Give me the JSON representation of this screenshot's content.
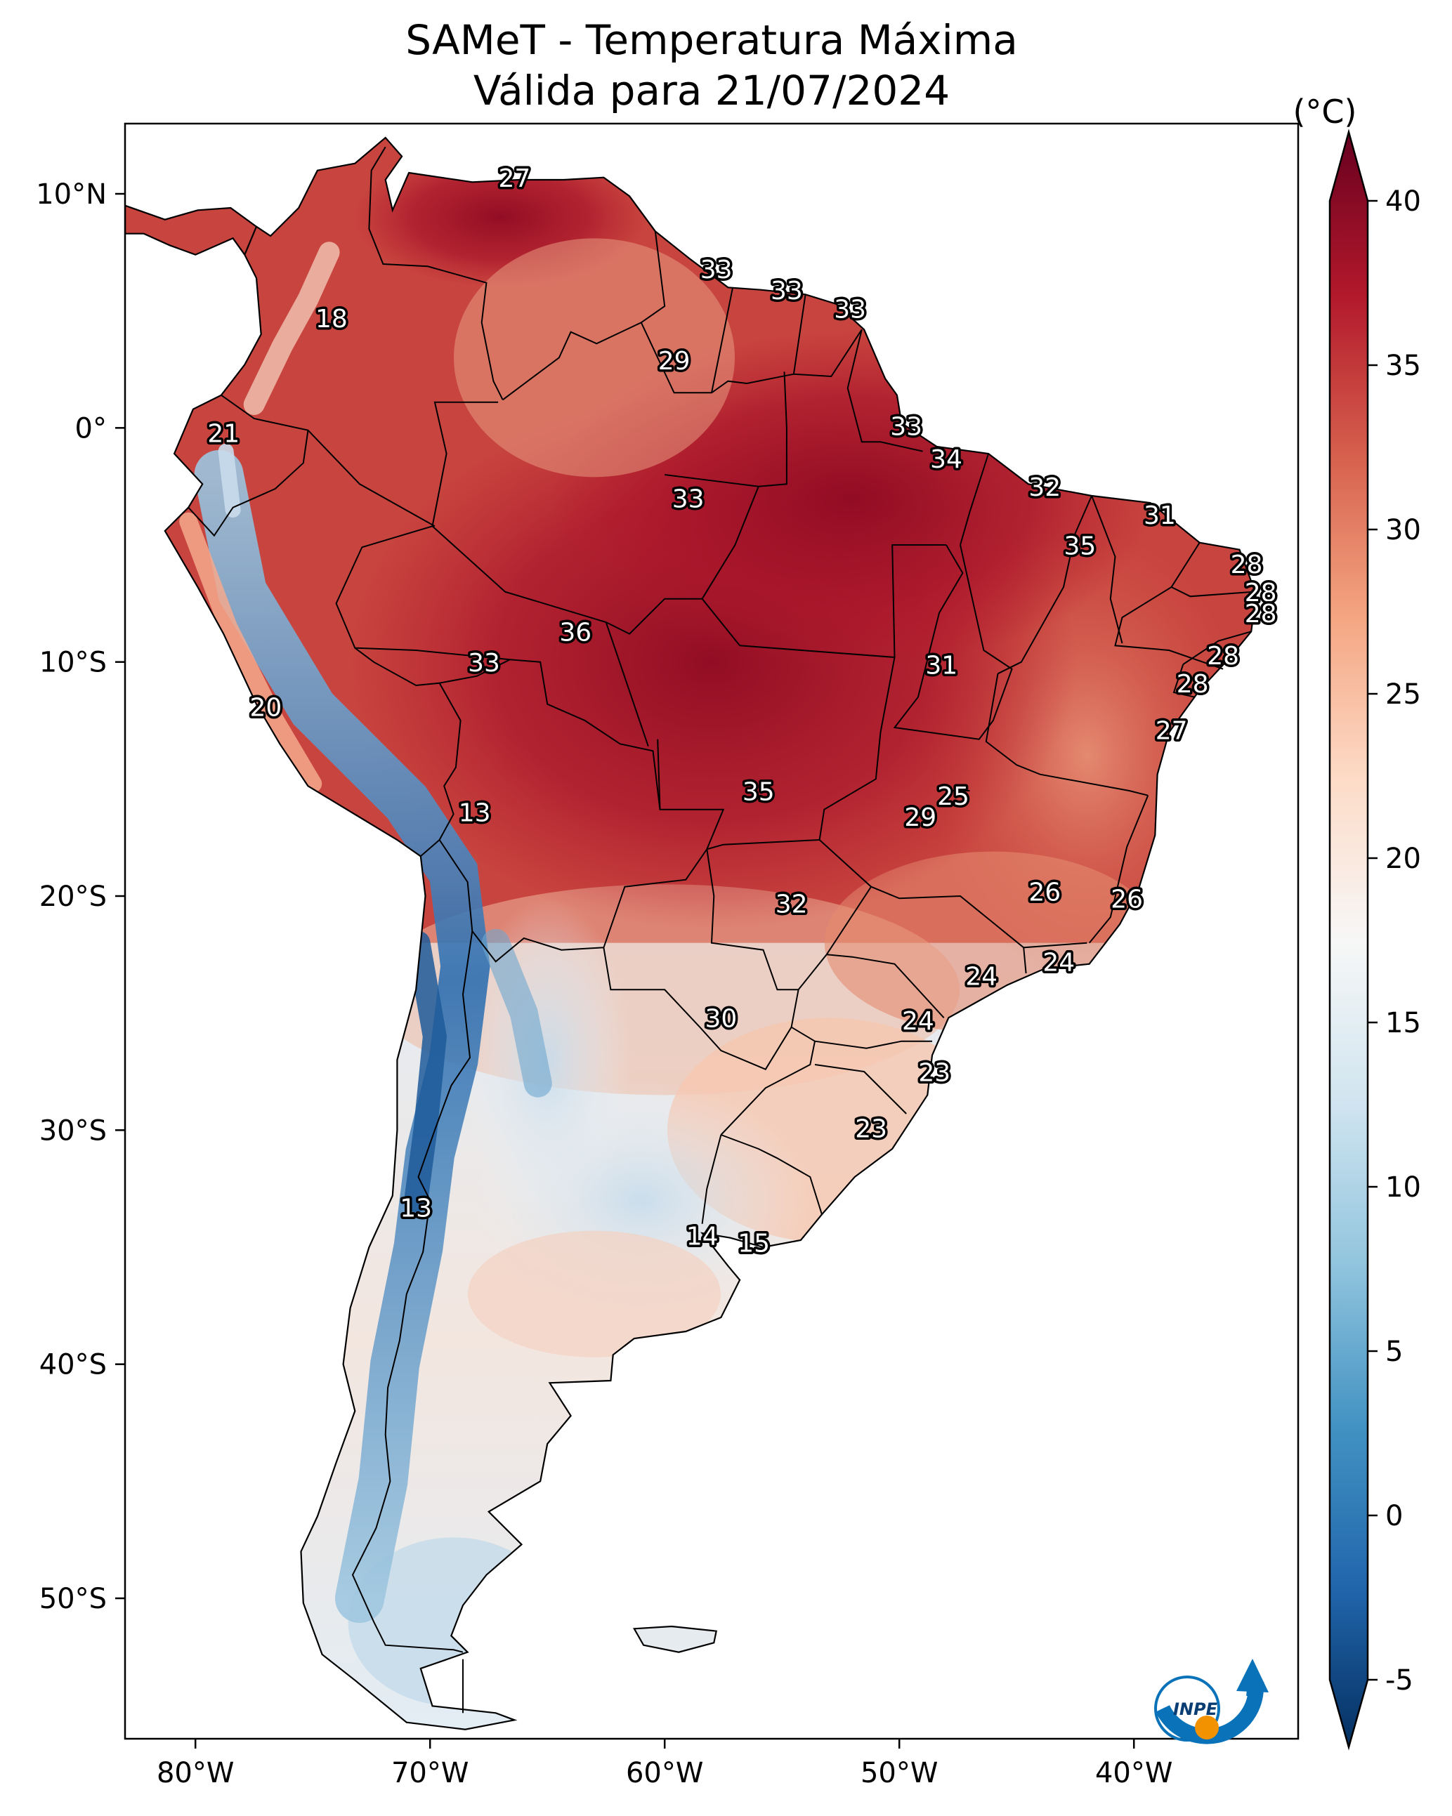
{
  "title": {
    "line1": "SAMeT - Temperatura Máxima",
    "line2": "Válida para 21/07/2024"
  },
  "colorbar": {
    "unit_label": "(°C)",
    "ticks": [
      "40",
      "35",
      "30",
      "25",
      "20",
      "15",
      "10",
      "5",
      "0",
      "-5"
    ],
    "range": [
      -5,
      40
    ],
    "colors": [
      "#053061",
      "#2166ac",
      "#4393c3",
      "#92c5de",
      "#d1e5f0",
      "#f7f7f7",
      "#fddbc7",
      "#f4a582",
      "#d6604d",
      "#b2182b",
      "#67001f"
    ]
  },
  "map": {
    "lon_ticks": [
      "80°W",
      "70°W",
      "60°W",
      "50°W",
      "40°W"
    ],
    "lat_ticks": [
      "10°N",
      "0°",
      "10°S",
      "20°S",
      "30°S",
      "40°S",
      "50°S"
    ],
    "extent": {
      "lon": [
        -83,
        -33
      ],
      "lat": [
        -56,
        13
      ]
    },
    "station_labels": [
      {
        "v": "27",
        "lon": -66.4,
        "lat": 10.6
      },
      {
        "v": "18",
        "lon": -74.2,
        "lat": 4.6
      },
      {
        "v": "21",
        "lon": -78.8,
        "lat": -0.3
      },
      {
        "v": "33",
        "lon": -57.8,
        "lat": 6.7
      },
      {
        "v": "33",
        "lon": -54.8,
        "lat": 5.8
      },
      {
        "v": "33",
        "lon": -52.1,
        "lat": 5.0
      },
      {
        "v": "29",
        "lon": -59.6,
        "lat": 2.8
      },
      {
        "v": "33",
        "lon": -49.7,
        "lat": 0.0
      },
      {
        "v": "33",
        "lon": -59.0,
        "lat": -3.1
      },
      {
        "v": "34",
        "lon": -48.0,
        "lat": -1.4
      },
      {
        "v": "32",
        "lon": -43.8,
        "lat": -2.6
      },
      {
        "v": "31",
        "lon": -38.9,
        "lat": -3.8
      },
      {
        "v": "35",
        "lon": -42.3,
        "lat": -5.1
      },
      {
        "v": "28",
        "lon": -35.2,
        "lat": -5.9
      },
      {
        "v": "28",
        "lon": -34.6,
        "lat": -7.1
      },
      {
        "v": "28",
        "lon": -34.6,
        "lat": -8.0
      },
      {
        "v": "36",
        "lon": -63.8,
        "lat": -8.8
      },
      {
        "v": "33",
        "lon": -67.7,
        "lat": -10.1
      },
      {
        "v": "31",
        "lon": -48.2,
        "lat": -10.2
      },
      {
        "v": "28",
        "lon": -36.2,
        "lat": -9.8
      },
      {
        "v": "28",
        "lon": -37.5,
        "lat": -11.0
      },
      {
        "v": "20",
        "lon": -77.0,
        "lat": -12.0
      },
      {
        "v": "27",
        "lon": -38.4,
        "lat": -13.0
      },
      {
        "v": "35",
        "lon": -56.0,
        "lat": -15.6
      },
      {
        "v": "25",
        "lon": -47.7,
        "lat": -15.8
      },
      {
        "v": "29",
        "lon": -49.1,
        "lat": -16.7
      },
      {
        "v": "13",
        "lon": -68.1,
        "lat": -16.5
      },
      {
        "v": "26",
        "lon": -43.8,
        "lat": -19.9
      },
      {
        "v": "26",
        "lon": -40.3,
        "lat": -20.2
      },
      {
        "v": "32",
        "lon": -54.6,
        "lat": -20.4
      },
      {
        "v": "24",
        "lon": -43.2,
        "lat": -22.9
      },
      {
        "v": "24",
        "lon": -46.5,
        "lat": -23.5
      },
      {
        "v": "30",
        "lon": -57.6,
        "lat": -25.3
      },
      {
        "v": "24",
        "lon": -49.2,
        "lat": -25.4
      },
      {
        "v": "23",
        "lon": -48.5,
        "lat": -27.6
      },
      {
        "v": "23",
        "lon": -51.2,
        "lat": -30.0
      },
      {
        "v": "13",
        "lon": -70.6,
        "lat": -33.4
      },
      {
        "v": "14",
        "lon": -58.4,
        "lat": -34.6
      },
      {
        "v": "15",
        "lon": -56.2,
        "lat": -34.9
      }
    ]
  },
  "logo": {
    "text": "INPE"
  }
}
